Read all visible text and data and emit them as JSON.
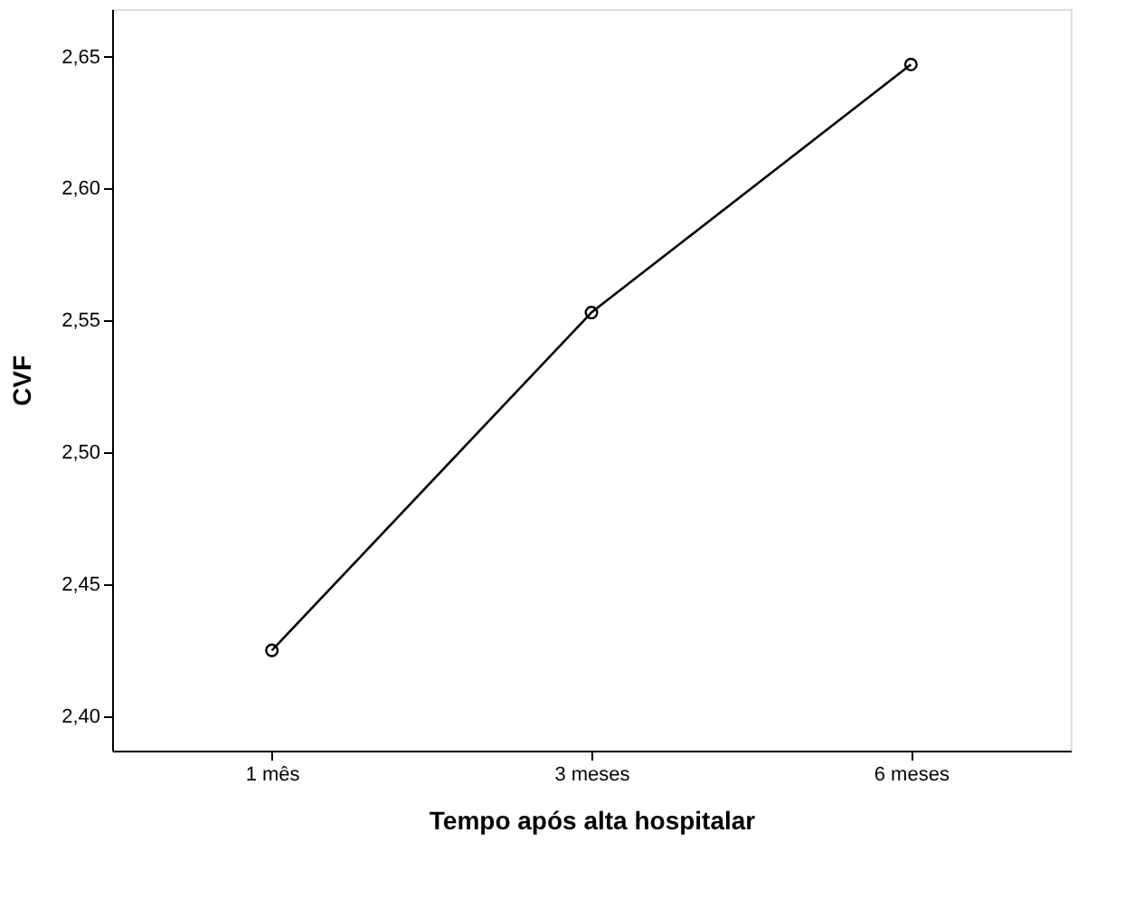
{
  "chart_data": {
    "type": "line",
    "xlabel": "Tempo após alta hospitalar",
    "ylabel": "CVF",
    "categories": [
      "1 mês",
      "3 meses",
      "6 meses"
    ],
    "values": [
      2.425,
      2.553,
      2.647
    ],
    "color": "#000000",
    "ylim": [
      2.387,
      2.668
    ],
    "yticks": [
      {
        "value": 2.4,
        "label": "2,40"
      },
      {
        "value": 2.45,
        "label": "2,45"
      },
      {
        "value": 2.5,
        "label": "2,50"
      },
      {
        "value": 2.55,
        "label": "2,55"
      },
      {
        "value": 2.6,
        "label": "2,60"
      },
      {
        "value": 2.65,
        "label": "2,65"
      }
    ],
    "grid": false,
    "marker": "circle",
    "line_style": "solid"
  }
}
